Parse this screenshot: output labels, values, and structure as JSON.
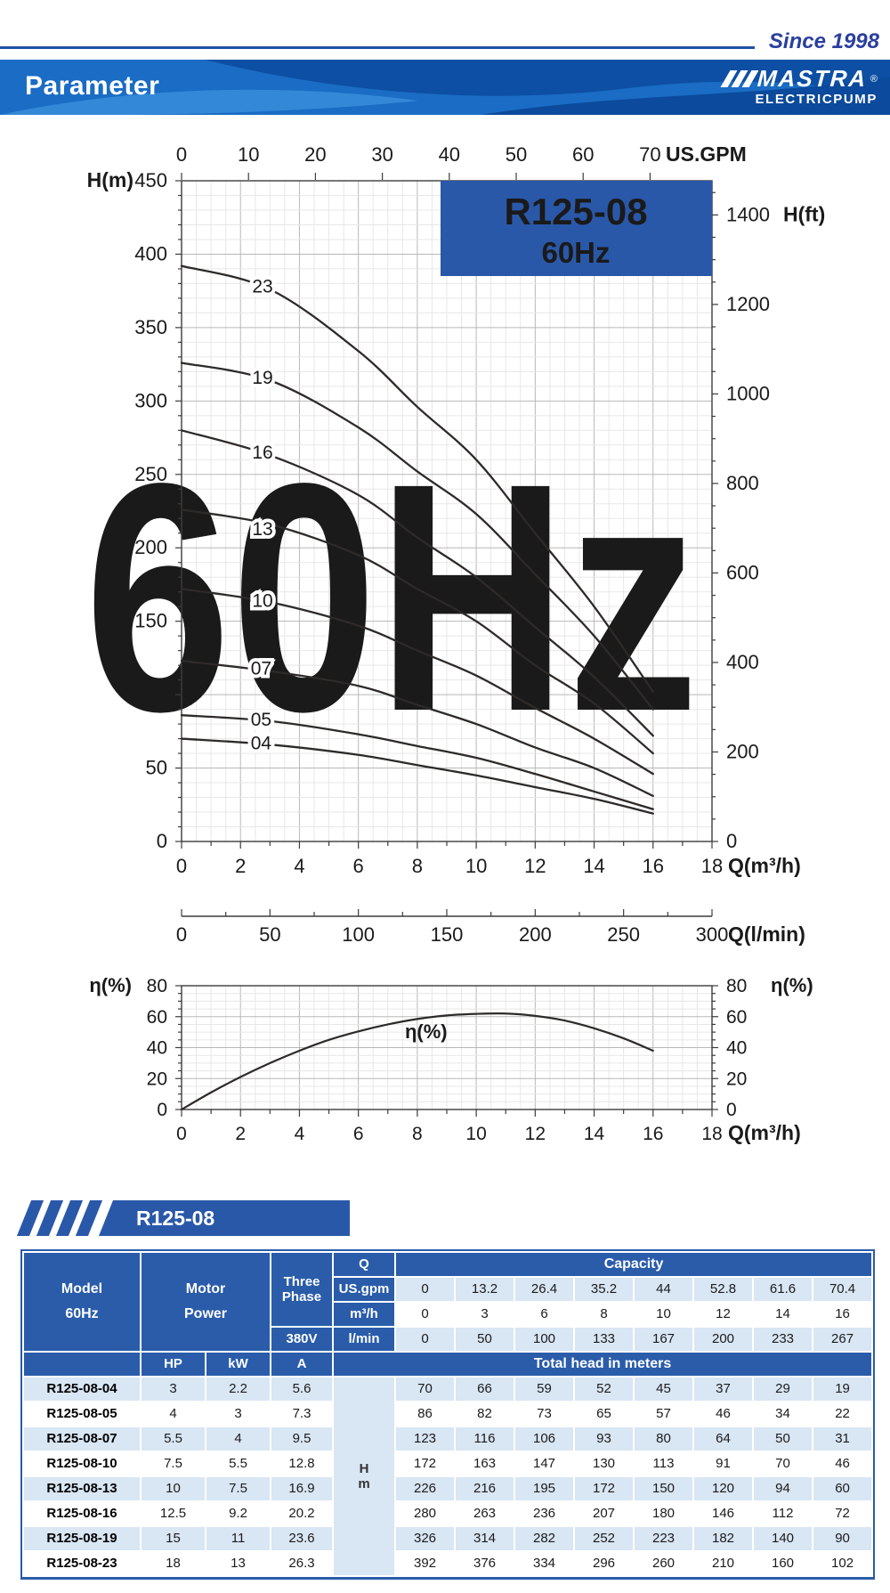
{
  "header": {
    "since": "Since 1998",
    "title": "Parameter",
    "brand": "MASTRA",
    "brand_reg": "®",
    "brand_sub": "ELECTRICPUMP"
  },
  "badge": {
    "model": "R125-08",
    "freq": "60Hz"
  },
  "watermark": "60Hz",
  "section_banner": "R125-08",
  "colors": {
    "header_blue": "#2a5caa",
    "badge_blue": "#2a58a9",
    "light_blue_row": "#d9e6f4",
    "band_blue": "#1a6cc4",
    "band_dark_blue": "#0d4fa4",
    "since_blue": "#2b3f9e",
    "watermark_gray": "#e5e5e5",
    "curve_color": "#2e2a28"
  },
  "chart_data": [
    {
      "type": "line",
      "name": "head-capacity-curves",
      "title": "R125-08 60Hz",
      "x_label": "Q(m³/h)",
      "x2_label": "Q(l/min)",
      "top_label": "US.GPM",
      "y_left_label": "H(m)",
      "y_right_label": "H(ft)",
      "xlim": [
        0,
        18
      ],
      "ylim": [
        0,
        450
      ],
      "x_ticks": [
        0,
        2,
        4,
        6,
        8,
        10,
        12,
        14,
        16,
        18
      ],
      "y_ticks_left": [
        0,
        50,
        100,
        150,
        200,
        250,
        300,
        350,
        400,
        450
      ],
      "y_ticks_right_ft": [
        0,
        200,
        400,
        600,
        800,
        1000,
        1200,
        1400
      ],
      "top_ticks_gpm": [
        0,
        10,
        20,
        30,
        40,
        50,
        60,
        70
      ],
      "lmin_ticks": [
        0,
        50,
        100,
        150,
        200,
        250,
        300
      ],
      "gpm_per_m3h": 4.4029,
      "ft_per_m": 3.2808,
      "lmin_max": 300,
      "grid": true,
      "x": [
        0,
        3,
        6,
        8,
        10,
        12,
        14,
        16
      ],
      "series": [
        {
          "name": "23",
          "values": [
            392,
            376,
            334,
            296,
            260,
            210,
            160,
            102
          ],
          "label_at": [
            2.75,
            378
          ]
        },
        {
          "name": "19",
          "values": [
            326,
            314,
            282,
            252,
            223,
            182,
            140,
            90
          ],
          "label_at": [
            2.75,
            316
          ]
        },
        {
          "name": "16",
          "values": [
            280,
            263,
            236,
            207,
            180,
            146,
            112,
            72
          ],
          "label_at": [
            2.75,
            265
          ]
        },
        {
          "name": "13",
          "values": [
            226,
            216,
            195,
            172,
            150,
            120,
            94,
            60
          ],
          "label_at": [
            2.75,
            213
          ]
        },
        {
          "name": "10",
          "values": [
            172,
            163,
            147,
            130,
            113,
            91,
            70,
            46
          ],
          "label_at": [
            2.75,
            164
          ]
        },
        {
          "name": "07",
          "values": [
            123,
            116,
            106,
            93,
            80,
            64,
            50,
            31
          ],
          "label_at": [
            2.7,
            118
          ]
        },
        {
          "name": "05",
          "values": [
            86,
            82,
            73,
            65,
            57,
            46,
            34,
            22
          ],
          "label_at": [
            2.7,
            83
          ]
        },
        {
          "name": "04",
          "values": [
            70,
            66,
            59,
            52,
            45,
            37,
            29,
            19
          ],
          "label_at": [
            2.7,
            67
          ]
        }
      ]
    },
    {
      "type": "line",
      "name": "efficiency-curve",
      "label": "η(%)",
      "y_left_label": "η(%)",
      "y_right_label": "η(%)",
      "x_label": "Q(m³/h)",
      "xlim": [
        0,
        18
      ],
      "ylim": [
        0,
        80
      ],
      "x_ticks": [
        0,
        2,
        4,
        6,
        8,
        10,
        12,
        14,
        16,
        18
      ],
      "y_ticks": [
        0,
        20,
        40,
        60,
        80
      ],
      "grid": true,
      "points": [
        [
          0,
          0
        ],
        [
          1,
          11
        ],
        [
          2,
          21
        ],
        [
          3,
          30
        ],
        [
          4,
          38
        ],
        [
          5,
          45
        ],
        [
          6,
          50.5
        ],
        [
          7,
          55
        ],
        [
          8,
          58.5
        ],
        [
          9,
          60.8
        ],
        [
          10,
          61.8
        ],
        [
          11,
          62
        ],
        [
          12,
          60.5
        ],
        [
          13,
          57.5
        ],
        [
          14,
          52.5
        ],
        [
          15,
          46
        ],
        [
          16,
          38
        ]
      ],
      "curve_label_at": [
        8.3,
        50
      ]
    }
  ],
  "table": {
    "model_header": [
      "Model",
      "60Hz"
    ],
    "motor_header": [
      "Motor",
      "Power"
    ],
    "phase_header": [
      "Three",
      "Phase"
    ],
    "q_label": "Q",
    "capacity_label": "Capacity",
    "voltage": "380V",
    "unit_rows": [
      {
        "label": "US.gpm",
        "values": [
          "0",
          "13.2",
          "26.4",
          "35.2",
          "44",
          "52.8",
          "61.6",
          "70.4"
        ]
      },
      {
        "label": "m³/h",
        "values": [
          "0",
          "3",
          "6",
          "8",
          "10",
          "12",
          "14",
          "16"
        ]
      },
      {
        "label": "l/min",
        "values": [
          "0",
          "50",
          "100",
          "133",
          "167",
          "200",
          "233",
          "267"
        ]
      }
    ],
    "sub_headers": [
      "HP",
      "kW",
      "A"
    ],
    "head_banner": "Total head in meters",
    "hm_label": [
      "H",
      "m"
    ],
    "rows": [
      {
        "model": "R125-08-04",
        "hp": "3",
        "kw": "2.2",
        "a": "5.6",
        "heads": [
          "70",
          "66",
          "59",
          "52",
          "45",
          "37",
          "29",
          "19"
        ]
      },
      {
        "model": "R125-08-05",
        "hp": "4",
        "kw": "3",
        "a": "7.3",
        "heads": [
          "86",
          "82",
          "73",
          "65",
          "57",
          "46",
          "34",
          "22"
        ]
      },
      {
        "model": "R125-08-07",
        "hp": "5.5",
        "kw": "4",
        "a": "9.5",
        "heads": [
          "123",
          "116",
          "106",
          "93",
          "80",
          "64",
          "50",
          "31"
        ]
      },
      {
        "model": "R125-08-10",
        "hp": "7.5",
        "kw": "5.5",
        "a": "12.8",
        "heads": [
          "172",
          "163",
          "147",
          "130",
          "113",
          "91",
          "70",
          "46"
        ]
      },
      {
        "model": "R125-08-13",
        "hp": "10",
        "kw": "7.5",
        "a": "16.9",
        "heads": [
          "226",
          "216",
          "195",
          "172",
          "150",
          "120",
          "94",
          "60"
        ]
      },
      {
        "model": "R125-08-16",
        "hp": "12.5",
        "kw": "9.2",
        "a": "20.2",
        "heads": [
          "280",
          "263",
          "236",
          "207",
          "180",
          "146",
          "112",
          "72"
        ]
      },
      {
        "model": "R125-08-19",
        "hp": "15",
        "kw": "11",
        "a": "23.6",
        "heads": [
          "326",
          "314",
          "282",
          "252",
          "223",
          "182",
          "140",
          "90"
        ]
      },
      {
        "model": "R125-08-23",
        "hp": "18",
        "kw": "13",
        "a": "26.3",
        "heads": [
          "392",
          "376",
          "334",
          "296",
          "260",
          "210",
          "160",
          "102"
        ]
      }
    ]
  }
}
